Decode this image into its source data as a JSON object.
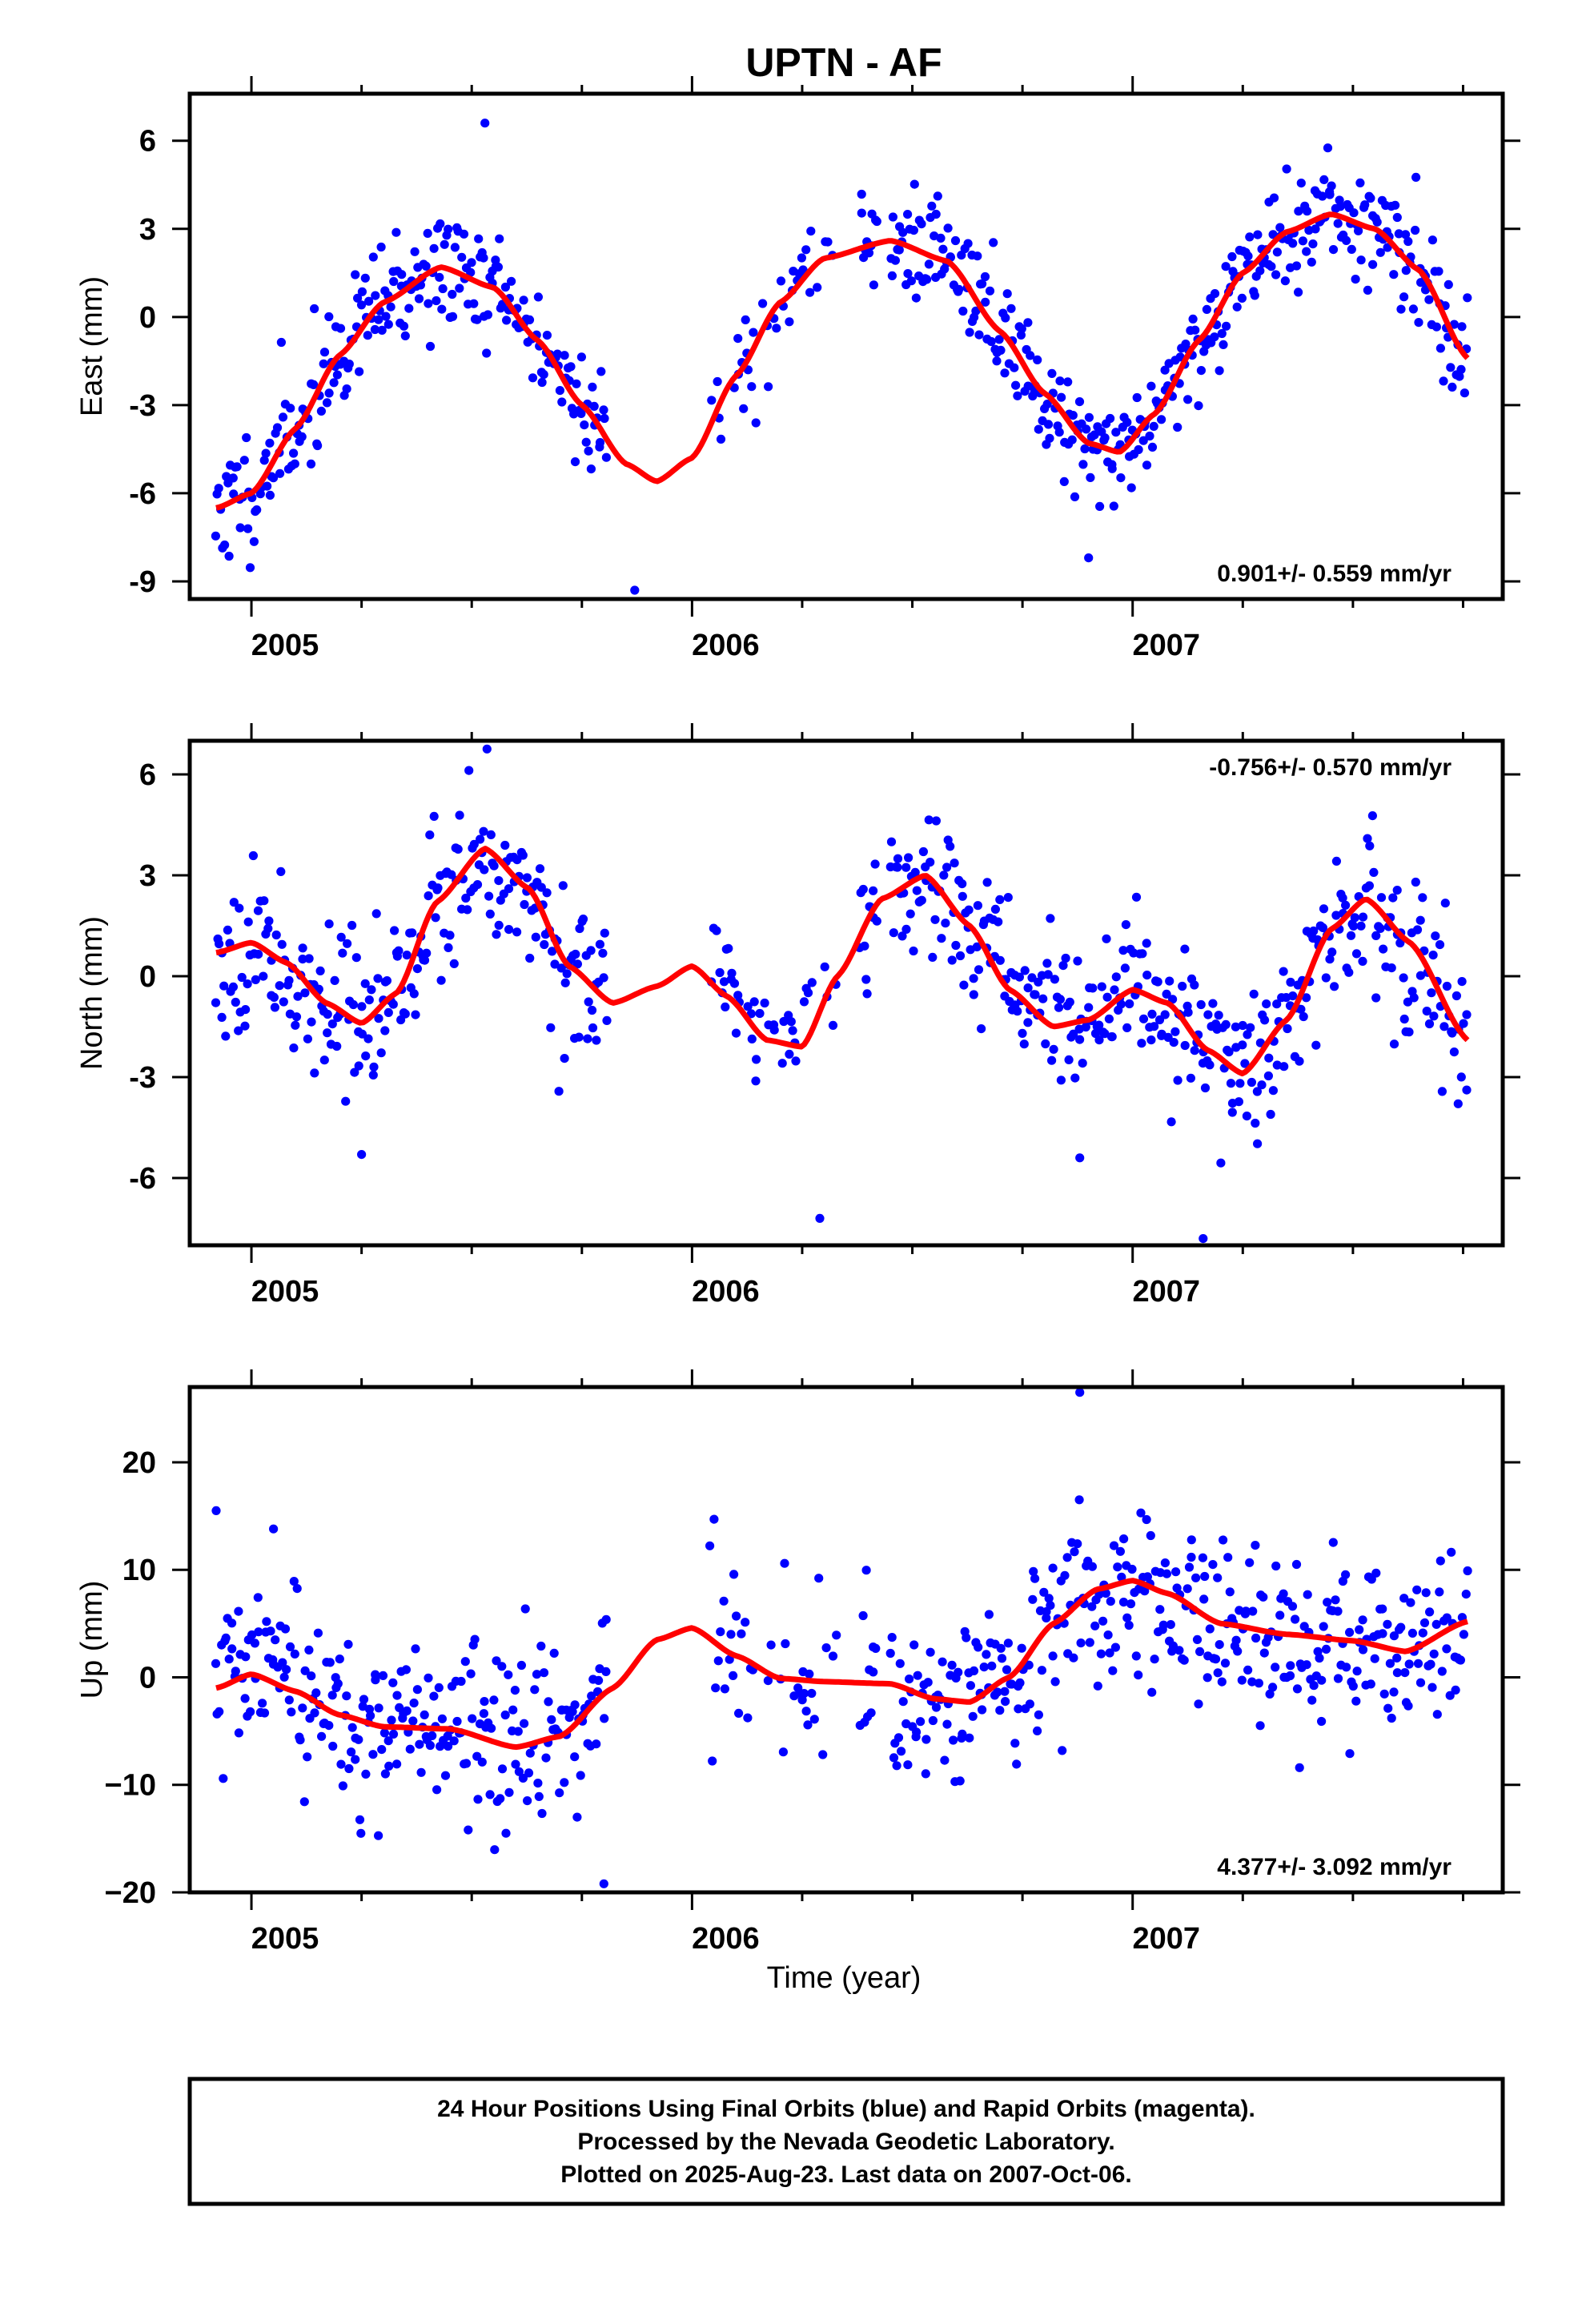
{
  "title": "UPTN - AF",
  "xlabel": "Time (year)",
  "x_ticks": [
    "2005",
    "2006",
    "2007"
  ],
  "colors": {
    "points": "#0000ff",
    "fit": "#ff0000",
    "frame": "#000000"
  },
  "footer": {
    "line1": "24 Hour Positions Using Final Orbits (blue) and Rapid Orbits (magenta).",
    "line2": "Processed by the Nevada Geodetic Laboratory.",
    "line3": "Plotted on 2025-Aug-23. Last data on 2007-Oct-06."
  },
  "chart_data": [
    {
      "type": "scatter",
      "panel": "east",
      "ylabel": "East (mm)",
      "rate": "0.901+/- 0.559 mm/yr",
      "rate_position": "bottom-right",
      "xlim": [
        2004.86,
        2007.84
      ],
      "ylim": [
        -9.6,
        7.6
      ],
      "yticks": [
        -9,
        -6,
        -3,
        0,
        3,
        6
      ],
      "ytick_labels": [
        "-9",
        "-6",
        "-3",
        "0",
        "3",
        "6"
      ],
      "x_minor_step": 0.25,
      "fit": {
        "x": [
          2004.92,
          2005.0,
          2005.1,
          2005.2,
          2005.3,
          2005.43,
          2005.55,
          2005.65,
          2005.75,
          2005.85,
          2005.92,
          2006.0,
          2006.1,
          2006.2,
          2006.3,
          2006.45,
          2006.58,
          2006.7,
          2006.8,
          2006.9,
          2006.97,
          2007.05,
          2007.15,
          2007.25,
          2007.35,
          2007.45,
          2007.55,
          2007.65,
          2007.76
        ],
        "y": [
          -6.5,
          -6.0,
          -3.8,
          -1.3,
          0.5,
          1.7,
          1.0,
          -0.8,
          -3.0,
          -5.0,
          -5.6,
          -4.8,
          -2.0,
          0.5,
          2.0,
          2.6,
          1.9,
          -0.5,
          -2.6,
          -4.3,
          -4.6,
          -3.3,
          -0.8,
          1.5,
          2.9,
          3.5,
          3.0,
          1.6,
          -1.4
        ]
      },
      "points_jitter": 1.0,
      "points_seed": 11,
      "outliers": [
        [
          2005.53,
          6.6
        ],
        [
          2005.87,
          -9.3
        ],
        [
          2006.9,
          -8.2
        ]
      ]
    },
    {
      "type": "scatter",
      "panel": "north",
      "ylabel": "North (mm)",
      "rate": "-0.756+/- 0.570 mm/yr",
      "rate_position": "top-right",
      "xlim": [
        2004.86,
        2007.84
      ],
      "ylim": [
        -8.0,
        7.0
      ],
      "yticks": [
        -6,
        -3,
        0,
        3,
        6
      ],
      "ytick_labels": [
        "-6",
        "-3",
        "0",
        "3",
        "6"
      ],
      "x_minor_step": 0.25,
      "fit": {
        "x": [
          2004.92,
          2005.0,
          2005.08,
          2005.17,
          2005.25,
          2005.33,
          2005.42,
          2005.53,
          2005.63,
          2005.72,
          2005.82,
          2005.92,
          2006.0,
          2006.08,
          2006.17,
          2006.25,
          2006.33,
          2006.43,
          2006.53,
          2006.63,
          2006.72,
          2006.82,
          2006.9,
          2007.0,
          2007.08,
          2007.17,
          2007.25,
          2007.35,
          2007.45,
          2007.53,
          2007.63,
          2007.76
        ],
        "y": [
          0.7,
          1.0,
          0.4,
          -0.8,
          -1.4,
          -0.5,
          2.2,
          3.8,
          2.6,
          0.3,
          -0.8,
          -0.3,
          0.3,
          -0.6,
          -1.9,
          -2.1,
          0.0,
          2.3,
          3.0,
          1.5,
          -0.4,
          -1.5,
          -1.3,
          -0.4,
          -0.8,
          -2.2,
          -2.9,
          -1.3,
          1.4,
          2.3,
          1.0,
          -1.9
        ]
      },
      "points_jitter": 1.15,
      "points_seed": 23,
      "outliers": [
        [
          2006.29,
          -7.2
        ],
        [
          2007.16,
          -7.8
        ],
        [
          2006.88,
          -5.4
        ],
        [
          2005.25,
          -5.3
        ]
      ]
    },
    {
      "type": "scatter",
      "panel": "up",
      "ylabel": "Up (mm)",
      "rate": "4.377+/- 3.092 mm/yr",
      "rate_position": "bottom-right",
      "xlim": [
        2004.86,
        2007.84
      ],
      "ylim": [
        -20.0,
        27.0
      ],
      "yticks": [
        -20,
        -10,
        0,
        10,
        20
      ],
      "ytick_labels": [
        "−20",
        "−10",
        "0",
        "10",
        "20"
      ],
      "x_minor_step": 0.25,
      "fit": {
        "x": [
          2004.92,
          2005.0,
          2005.1,
          2005.2,
          2005.3,
          2005.45,
          2005.6,
          2005.7,
          2005.82,
          2005.92,
          2006.0,
          2006.1,
          2006.2,
          2006.3,
          2006.45,
          2006.55,
          2006.63,
          2006.72,
          2006.82,
          2006.92,
          2007.0,
          2007.08,
          2007.2,
          2007.35,
          2007.5,
          2007.62,
          2007.76
        ],
        "y": [
          -1.0,
          0.3,
          -1.3,
          -3.5,
          -4.6,
          -4.8,
          -6.5,
          -5.5,
          -1.0,
          3.5,
          4.6,
          2.0,
          -0.1,
          -0.4,
          -0.6,
          -2.0,
          -2.3,
          0.0,
          5.0,
          8.2,
          9.0,
          7.8,
          5.0,
          4.0,
          3.4,
          2.4,
          5.2
        ]
      },
      "points_jitter": 4.2,
      "points_seed": 37,
      "outliers": [
        [
          2006.88,
          26.5
        ],
        [
          2005.8,
          -19.2
        ],
        [
          2005.05,
          13.8
        ],
        [
          2006.05,
          14.7
        ],
        [
          2006.21,
          10.6
        ],
        [
          2004.92,
          15.5
        ]
      ]
    }
  ]
}
